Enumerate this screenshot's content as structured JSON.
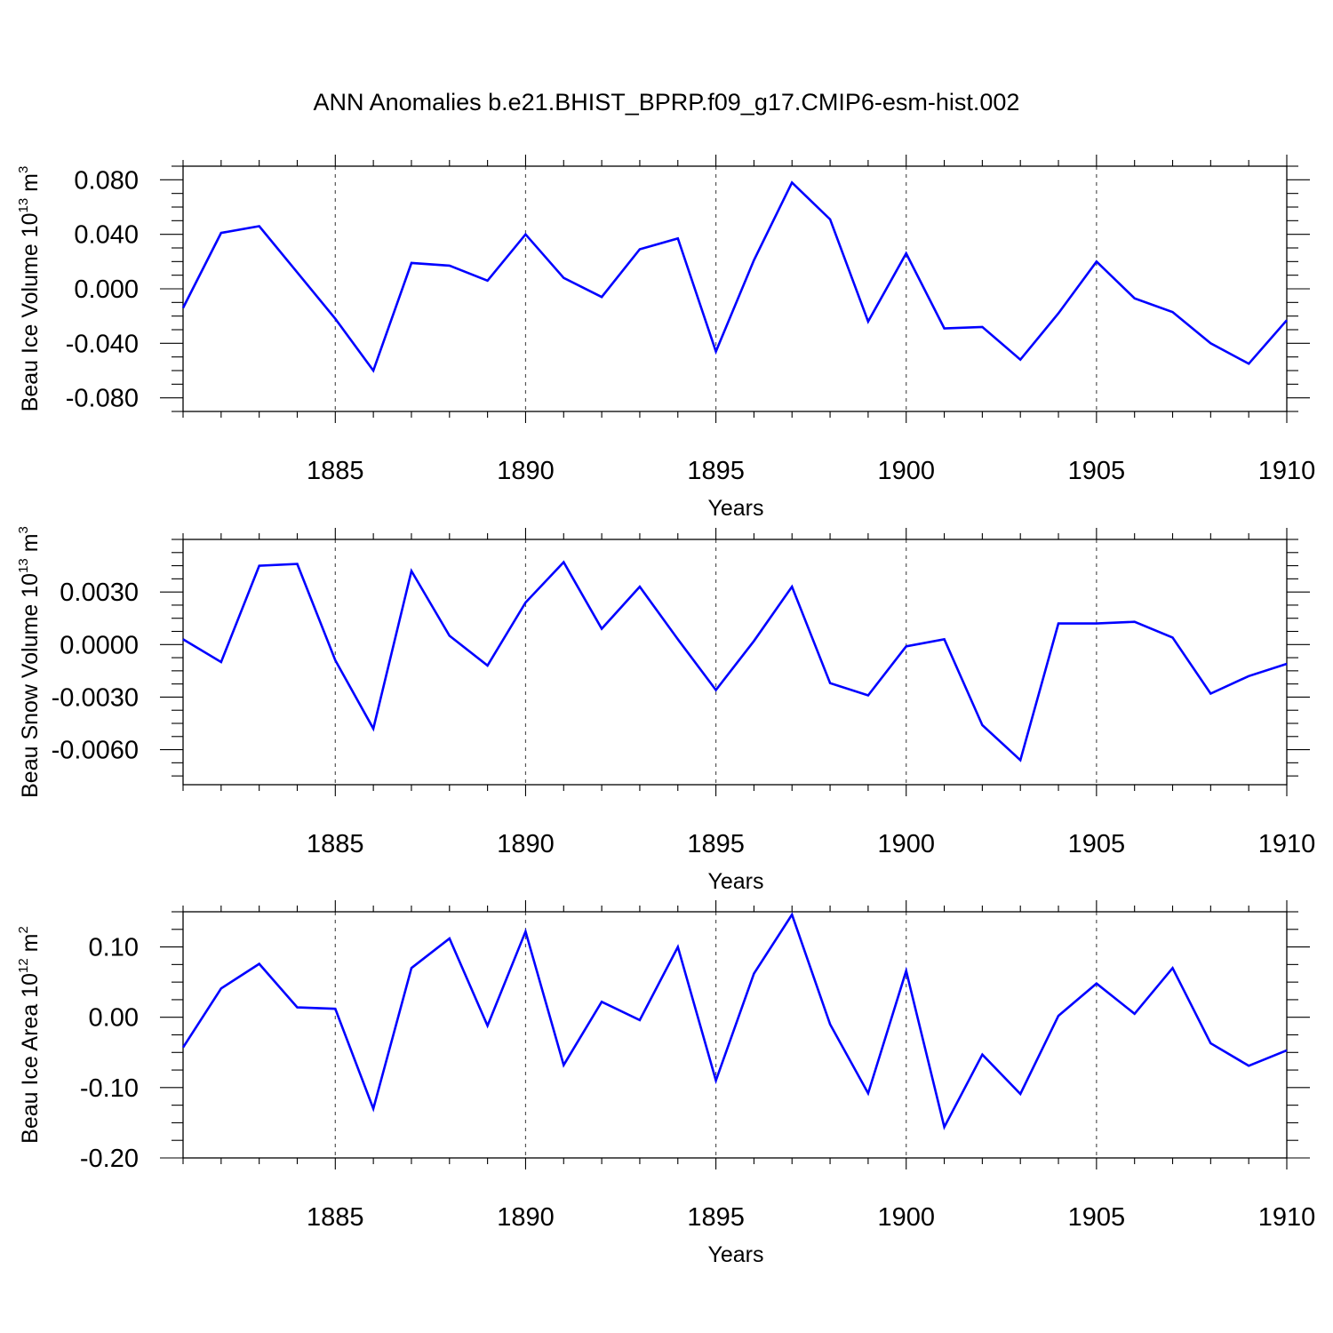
{
  "title": "ANN Anomalies b.e21.BHIST_BPRP.f09_g17.CMIP6-esm-hist.002",
  "colors": {
    "series": "#0000ff",
    "frame": "#000000",
    "grid": "#555555"
  },
  "chart_data": [
    {
      "type": "line",
      "ylabel_text": "Beau Ice Volume 10",
      "ylabel_exp": "13",
      "ylabel_unit": " m",
      "ylabel_unit_exp": "3",
      "xlabel": "Years",
      "xlim": [
        1881,
        1910
      ],
      "ylim": [
        -0.09,
        0.09
      ],
      "xticks": [
        1885,
        1890,
        1895,
        1900,
        1905,
        1910
      ],
      "xtick_labels": [
        "1885",
        "1890",
        "1895",
        "1900",
        "1905",
        "1910"
      ],
      "yticks": [
        0.08,
        0.04,
        0.0,
        -0.04,
        -0.08
      ],
      "ytick_labels": [
        "0.080",
        "0.040",
        "0.000",
        "-0.040",
        "-0.080"
      ],
      "grid": "vertical dashed at major x ticks",
      "x": [
        1881,
        1882,
        1883,
        1884,
        1885,
        1886,
        1887,
        1888,
        1889,
        1890,
        1891,
        1892,
        1893,
        1894,
        1895,
        1896,
        1897,
        1898,
        1899,
        1900,
        1901,
        1902,
        1903,
        1904,
        1905,
        1906,
        1907,
        1908,
        1909,
        1910
      ],
      "values": [
        -0.014,
        0.041,
        0.046,
        0.012,
        -0.022,
        -0.06,
        0.019,
        0.017,
        0.006,
        0.04,
        0.008,
        -0.006,
        0.029,
        0.037,
        -0.046,
        0.021,
        0.078,
        0.051,
        -0.024,
        0.026,
        -0.029,
        -0.028,
        -0.052,
        -0.018,
        0.02,
        -0.007,
        -0.017,
        -0.04,
        -0.055,
        -0.023
      ]
    },
    {
      "type": "line",
      "ylabel_text": "Beau Snow Volume 10",
      "ylabel_exp": "13",
      "ylabel_unit": " m",
      "ylabel_unit_exp": "3",
      "xlabel": "Years",
      "xlim": [
        1881,
        1910
      ],
      "ylim": [
        -0.008,
        0.006
      ],
      "xticks": [
        1885,
        1890,
        1895,
        1900,
        1905,
        1910
      ],
      "xtick_labels": [
        "1885",
        "1890",
        "1895",
        "1900",
        "1905",
        "1910"
      ],
      "yticks": [
        0.003,
        0.0,
        -0.003,
        -0.006
      ],
      "ytick_labels": [
        "0.0030",
        "0.0000",
        "-0.0030",
        "-0.0060"
      ],
      "grid": "vertical dashed at major x ticks",
      "x": [
        1881,
        1882,
        1883,
        1884,
        1885,
        1886,
        1887,
        1888,
        1889,
        1890,
        1891,
        1892,
        1893,
        1894,
        1895,
        1896,
        1897,
        1898,
        1899,
        1900,
        1901,
        1902,
        1903,
        1904,
        1905,
        1906,
        1907,
        1908,
        1909,
        1910
      ],
      "values": [
        0.0003,
        -0.001,
        0.0045,
        0.0046,
        -0.0009,
        -0.0048,
        0.0042,
        0.0005,
        -0.0012,
        0.0024,
        0.0047,
        0.0009,
        0.0033,
        0.0003,
        -0.0026,
        0.0002,
        0.0033,
        -0.0022,
        -0.0029,
        -0.0001,
        0.0003,
        -0.0046,
        -0.0066,
        0.0012,
        0.0012,
        0.0013,
        0.0004,
        -0.0028,
        -0.0018,
        -0.0011
      ]
    },
    {
      "type": "line",
      "ylabel_text": "Beau Ice Area 10",
      "ylabel_exp": "12",
      "ylabel_unit": " m",
      "ylabel_unit_exp": "2",
      "xlabel": "Years",
      "xlim": [
        1881,
        1910
      ],
      "ylim": [
        -0.2,
        0.15
      ],
      "xticks": [
        1885,
        1890,
        1895,
        1900,
        1905,
        1910
      ],
      "xtick_labels": [
        "1885",
        "1890",
        "1895",
        "1900",
        "1905",
        "1910"
      ],
      "yticks": [
        0.1,
        0.0,
        -0.1,
        -0.2
      ],
      "ytick_labels": [
        "0.10",
        "0.00",
        "-0.10",
        "-0.20"
      ],
      "grid": "vertical dashed at major x ticks",
      "x": [
        1881,
        1882,
        1883,
        1884,
        1885,
        1886,
        1887,
        1888,
        1889,
        1890,
        1891,
        1892,
        1893,
        1894,
        1895,
        1896,
        1897,
        1898,
        1899,
        1900,
        1901,
        1902,
        1903,
        1904,
        1905,
        1906,
        1907,
        1908,
        1909,
        1910
      ],
      "values": [
        -0.043,
        0.041,
        0.076,
        0.014,
        0.012,
        -0.13,
        0.07,
        0.112,
        -0.012,
        0.122,
        -0.068,
        0.022,
        -0.004,
        0.1,
        -0.09,
        0.062,
        0.146,
        -0.01,
        -0.108,
        0.066,
        -0.156,
        -0.053,
        -0.109,
        0.002,
        0.048,
        0.005,
        0.07,
        -0.037,
        -0.069,
        -0.047
      ]
    }
  ]
}
